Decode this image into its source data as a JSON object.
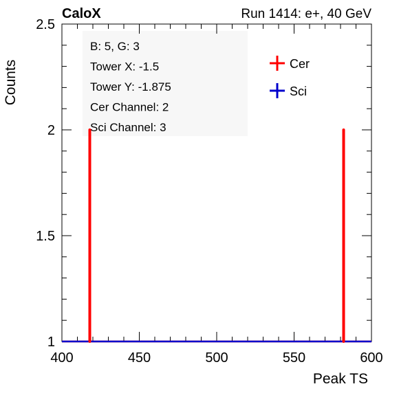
{
  "header": {
    "left_label": "CaloX",
    "right_label": "Run 1414: e+, 40 GeV"
  },
  "info_box": {
    "lines": [
      "B: 5, G: 3",
      "Tower X: -1.5",
      "Tower Y: -1.875",
      "Cer Channel: 2",
      "Sci Channel: 3"
    ]
  },
  "chart_data": {
    "type": "line",
    "xlabel": "Peak TS",
    "ylabel": "Counts",
    "xlim": [
      400,
      600
    ],
    "ylim": [
      1,
      2.5
    ],
    "x_ticks": [
      "400",
      "450",
      "500",
      "550",
      "600"
    ],
    "y_ticks": [
      "1",
      "1.5",
      "2",
      "2.5"
    ],
    "legend_position": "top-right",
    "series": [
      {
        "name": "Cer",
        "color": "#ff0000",
        "baseline": 1,
        "spikes": [
          {
            "x": 418,
            "y": 2
          },
          {
            "x": 582,
            "y": 2
          }
        ]
      },
      {
        "name": "Sci",
        "color": "#0000cc",
        "baseline": 1,
        "spikes": []
      }
    ]
  }
}
